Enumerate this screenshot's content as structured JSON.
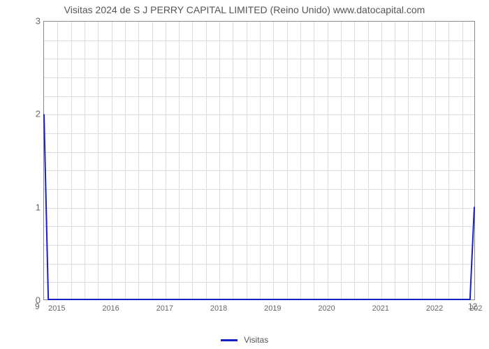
{
  "chart": {
    "type": "line",
    "title": "Visitas 2024 de S J PERRY CAPITAL LIMITED (Reino Unido) www.datocapital.com",
    "title_fontsize": 14,
    "title_color": "#555555",
    "background_color": "#ffffff",
    "plot_border_color": "#888888",
    "grid_color": "#dddddd",
    "axis_label_color": "#666666",
    "axis_label_fontsize": 13,
    "x_axis_label_fontsize": 11,
    "xlim": [
      2014.75,
      2022.75
    ],
    "ylim": [
      0,
      3
    ],
    "ytick_step": 1,
    "yticks": [
      0,
      1,
      2,
      3
    ],
    "xticks": [
      2015,
      2016,
      2017,
      2018,
      2019,
      2020,
      2021,
      2022
    ],
    "xtick_labels": [
      "2015",
      "2016",
      "2017",
      "2018",
      "2019",
      "2020",
      "2021",
      "2022"
    ],
    "x_minor_ticks_per_interval": 3,
    "y_minor_ticks_per_interval": 4,
    "corner_bottom_left_label": "9",
    "corner_bottom_right_label": "12",
    "corner_top_right_label": "202",
    "series": [
      {
        "name": "Visitas",
        "color": "#1620c7",
        "line_width": 2,
        "x": [
          2014.75,
          2014.83,
          2022.67,
          2022.75
        ],
        "y": [
          2.0,
          0.0,
          0.0,
          1.0
        ]
      }
    ],
    "legend": {
      "position": "bottom-center",
      "items": [
        {
          "label": "Visitas",
          "color": "#1620c7"
        }
      ]
    }
  }
}
